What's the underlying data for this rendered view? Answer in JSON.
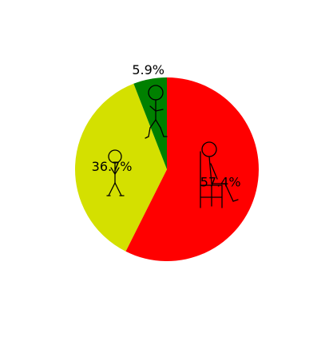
{
  "chart_data": {
    "type": "pie",
    "title": "",
    "start_angle_deg": 90,
    "direction": "clockwise",
    "slices": [
      {
        "label_text": "57.4%",
        "value": 57.4,
        "color": "#ff0000",
        "icon": "sitting-person-icon"
      },
      {
        "label_text": "36.7%",
        "value": 36.7,
        "color": "#d4e000",
        "icon": "standing-person-icon"
      },
      {
        "label_text": "5.9%",
        "value": 5.9,
        "color": "#008000",
        "icon": "walking-person-icon"
      }
    ],
    "legend": "none",
    "grid": false
  }
}
